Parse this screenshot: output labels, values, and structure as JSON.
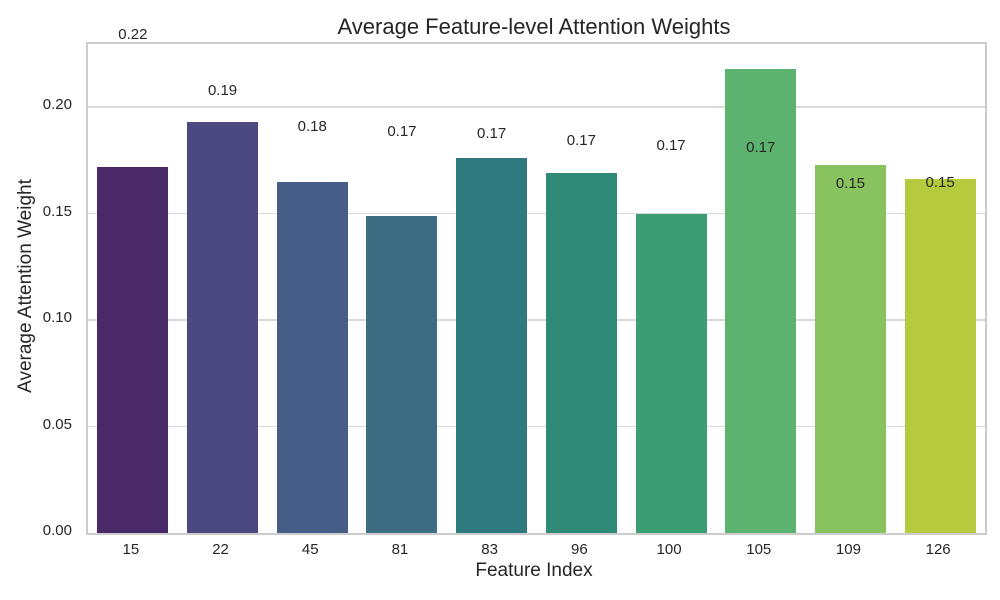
{
  "colors": {
    "background": "#ffffff",
    "text": "#262626",
    "grid": "#d9d9d9",
    "spine": "#cccccc"
  },
  "chart_data": {
    "type": "bar",
    "title": "Average Feature-level Attention Weights",
    "xlabel": "Feature Index",
    "ylabel": "Average Attention Weight",
    "categories": [
      "15",
      "22",
      "45",
      "81",
      "83",
      "96",
      "100",
      "105",
      "109",
      "126"
    ],
    "values": [
      0.172,
      0.193,
      0.165,
      0.149,
      0.176,
      0.169,
      0.15,
      0.218,
      0.173,
      0.166
    ],
    "bar_value_labels": [
      "0.22",
      "0.19",
      "0.18",
      "0.17",
      "0.17",
      "0.17",
      "0.17",
      "0.17",
      "0.15",
      "0.15"
    ],
    "bar_value_label_heights": [
      0.2312,
      0.2049,
      0.1876,
      0.1853,
      0.1844,
      0.1811,
      0.1787,
      0.1778,
      0.1609,
      0.1614
    ],
    "bar_colors": [
      "#492968",
      "#4c4980",
      "#465d87",
      "#3d6d83",
      "#2f7a7e",
      "#2f8a77",
      "#3b9d72",
      "#5cb36f",
      "#88c35f",
      "#b5ca3d"
    ],
    "ylim": [
      0,
      0.22958
    ],
    "yticks": [
      0.0,
      0.05,
      0.1,
      0.15,
      0.2
    ],
    "ytick_labels": [
      "0.00",
      "0.05",
      "0.10",
      "0.15",
      "0.20"
    ],
    "grid": "horizontal",
    "legend": "none"
  }
}
